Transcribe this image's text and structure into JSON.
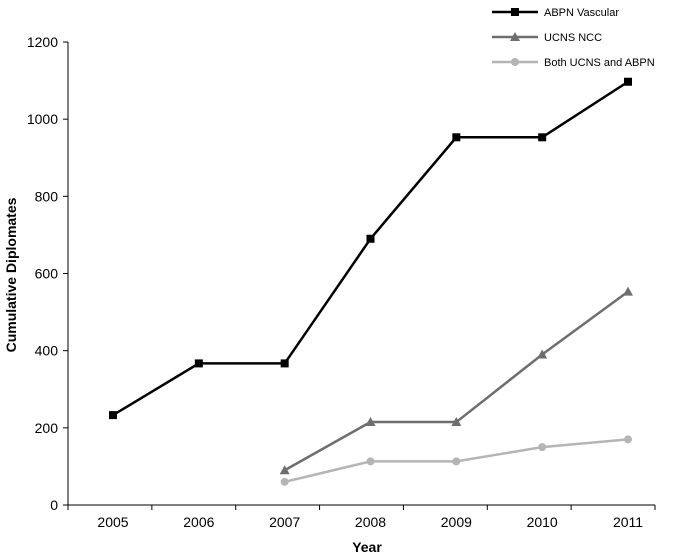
{
  "chart_data": {
    "type": "line",
    "xlabel": "Year",
    "ylabel": "Cumulative Diplomates",
    "x": [
      "2005",
      "2006",
      "2007",
      "2008",
      "2009",
      "2010",
      "2011"
    ],
    "ylim": [
      0,
      1200
    ],
    "yticks": [
      0,
      200,
      400,
      600,
      800,
      1000,
      1200
    ],
    "grid": false,
    "legend_position": "top-right",
    "series": [
      {
        "name": "ABPN Vascular",
        "marker": "square",
        "color": "#000000",
        "values": [
          233,
          367,
          367,
          690,
          953,
          953,
          1097
        ]
      },
      {
        "name": "UCNS NCC",
        "marker": "triangle",
        "color": "#6e6e6e",
        "values": [
          null,
          null,
          90,
          215,
          215,
          390,
          553
        ]
      },
      {
        "name": "Both UCNS and ABPN",
        "marker": "circle",
        "color": "#b5b5b5",
        "values": [
          null,
          null,
          60,
          113,
          113,
          150,
          170
        ]
      }
    ]
  }
}
